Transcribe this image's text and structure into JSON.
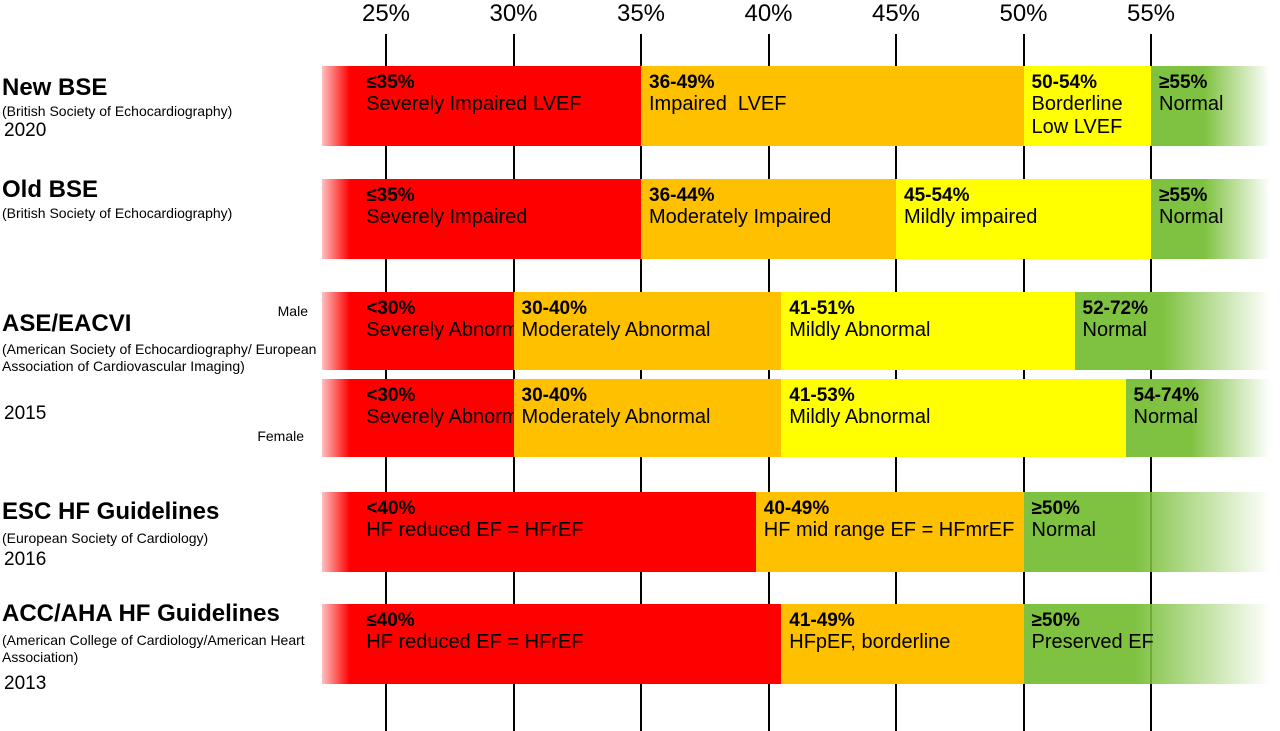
{
  "axis": {
    "ticks": [
      {
        "value": 25,
        "label": "25%"
      },
      {
        "value": 30,
        "label": "30%"
      },
      {
        "value": 35,
        "label": "35%"
      },
      {
        "value": 40,
        "label": "40%"
      },
      {
        "value": 45,
        "label": "45%"
      },
      {
        "value": 50,
        "label": "50%"
      },
      {
        "value": 55,
        "label": "55%"
      }
    ]
  },
  "colors": {
    "red": "#ff0000",
    "orange": "#ffc000",
    "yellow": "#ffff00",
    "green": "#7fc241"
  },
  "guidelines": [
    {
      "title": "New BSE",
      "subtitle": "(British Society of Echocardiography)",
      "year": "2020",
      "rows": [
        {
          "sex": "",
          "segments": [
            {
              "from": 22.5,
              "to": 35,
              "color": "red",
              "range": "≤35%",
              "label": "Severely Impaired LVEF"
            },
            {
              "from": 35,
              "to": 50,
              "color": "orange",
              "range": "36-49%",
              "label": "Impaired  LVEF"
            },
            {
              "from": 50,
              "to": 55,
              "color": "yellow",
              "range": "50-54%",
              "label": "Borderline\nLow LVEF"
            },
            {
              "from": 55,
              "to": 60,
              "color": "green",
              "range": "≥55%",
              "label": "Normal"
            }
          ]
        }
      ]
    },
    {
      "title": "Old BSE",
      "subtitle": "(British Society of Echocardiography)",
      "year": "",
      "rows": [
        {
          "sex": "",
          "segments": [
            {
              "from": 22.5,
              "to": 35,
              "color": "red",
              "range": "≤35%",
              "label": "Severely Impaired"
            },
            {
              "from": 35,
              "to": 45,
              "color": "orange",
              "range": "36-44%",
              "label": "Moderately Impaired"
            },
            {
              "from": 45,
              "to": 55,
              "color": "yellow",
              "range": "45-54%",
              "label": "Mildly impaired"
            },
            {
              "from": 55,
              "to": 60,
              "color": "green",
              "range": "≥55%",
              "label": "Normal"
            }
          ]
        }
      ]
    },
    {
      "title": "ASE/EACVI",
      "subtitle": "(American Society of Echocardiography/ European Association of Cardiovascular Imaging)",
      "year": "2015",
      "rows": [
        {
          "sex": "Male",
          "segments": [
            {
              "from": 22.5,
              "to": 30,
              "color": "red",
              "range": "<30%",
              "label": "Severely Abnormal"
            },
            {
              "from": 30,
              "to": 40.5,
              "color": "orange",
              "range": "30-40%",
              "label": "Moderately Abnormal"
            },
            {
              "from": 40.5,
              "to": 52,
              "color": "yellow",
              "range": "41-51%",
              "label": "Mildly Abnormal"
            },
            {
              "from": 52,
              "to": 60,
              "color": "green",
              "range": "52-72%",
              "label": "Normal"
            }
          ]
        },
        {
          "sex": "Female",
          "segments": [
            {
              "from": 22.5,
              "to": 30,
              "color": "red",
              "range": "<30%",
              "label": "Severely Abnormal"
            },
            {
              "from": 30,
              "to": 40.5,
              "color": "orange",
              "range": "30-40%",
              "label": "Moderately Abnormal"
            },
            {
              "from": 40.5,
              "to": 54,
              "color": "yellow",
              "range": "41-53%",
              "label": "Mildly Abnormal"
            },
            {
              "from": 54,
              "to": 60,
              "color": "green",
              "range": "54-74%",
              "label": "Normal"
            }
          ]
        }
      ]
    },
    {
      "title": "ESC HF Guidelines",
      "subtitle": "(European Society of Cardiology)",
      "year": "2016",
      "rows": [
        {
          "sex": "",
          "segments": [
            {
              "from": 22.5,
              "to": 39.5,
              "color": "red",
              "range": "<40%",
              "label": "HF reduced EF = HFrEF"
            },
            {
              "from": 39.5,
              "to": 50,
              "color": "orange",
              "range": "40-49%",
              "label": "HF mid range EF = HFmrEF"
            },
            {
              "from": 50,
              "to": 60,
              "color": "green",
              "range": "≥50%",
              "label": "Normal"
            }
          ]
        }
      ]
    },
    {
      "title": "ACC/AHA HF Guidelines",
      "subtitle": "(American College of Cardiology/American Heart Association)",
      "year": "2013",
      "rows": [
        {
          "sex": "",
          "segments": [
            {
              "from": 22.5,
              "to": 40.5,
              "color": "red",
              "range": "≤40%",
              "label": "HF reduced EF = HFrEF"
            },
            {
              "from": 40.5,
              "to": 50,
              "color": "orange",
              "range": "41-49%",
              "label": "HFpEF, borderline"
            },
            {
              "from": 50,
              "to": 60,
              "color": "green",
              "range": "≥50%",
              "label": "Preserved EF"
            }
          ]
        }
      ]
    }
  ]
}
